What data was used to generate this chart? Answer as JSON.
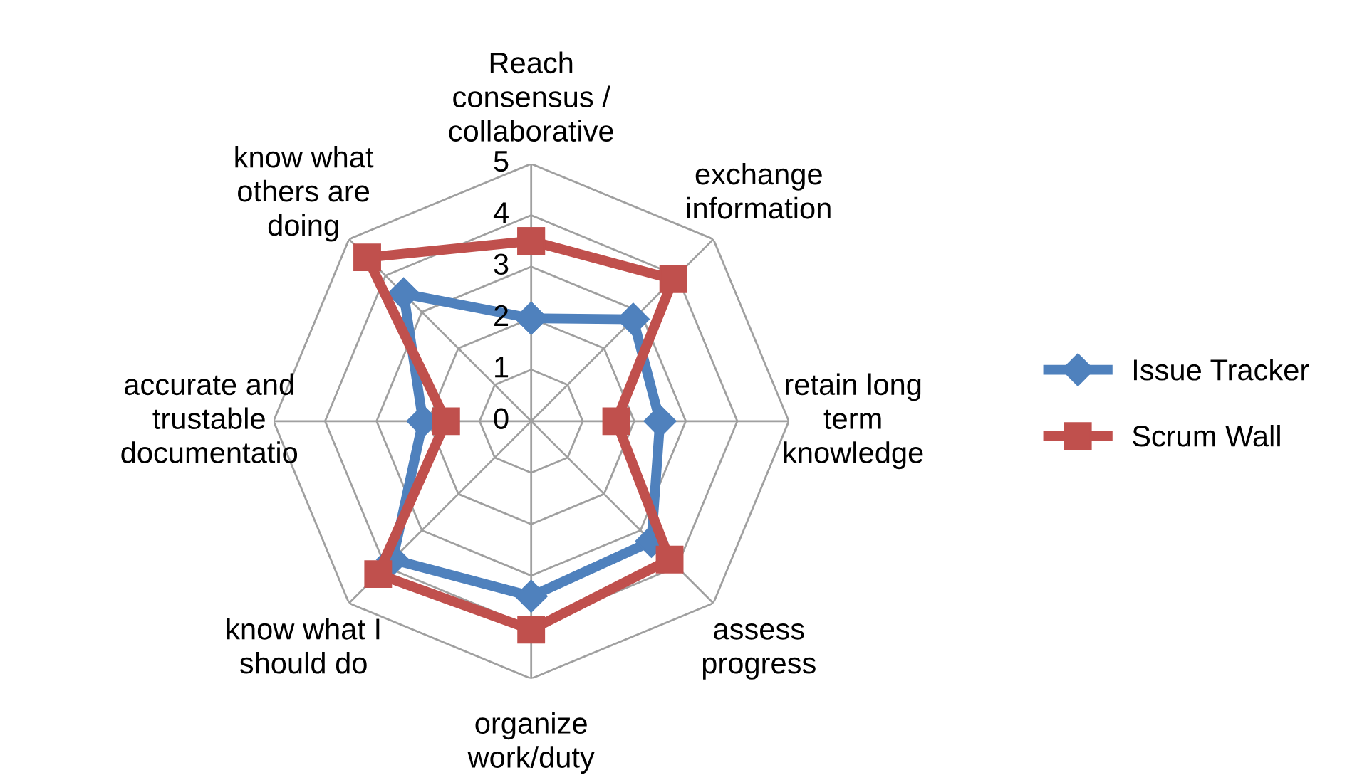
{
  "chart_data": {
    "type": "radar",
    "categories": [
      "Reach\nconsensus /\ncollaborative",
      "exchange\ninformation",
      "retain long\nterm\nknowledge",
      "assess\nprogress",
      "organize\nwork/duty",
      "know what I\nshould do",
      "accurate and\ntrustable\ndocumentatio",
      "know what\nothers are\ndoing"
    ],
    "series": [
      {
        "name": "Issue Tracker",
        "color": "#4f81bd",
        "marker": "diamond",
        "values": [
          2,
          2.8,
          2.5,
          3.3,
          3.4,
          3.8,
          2.1,
          3.5
        ]
      },
      {
        "name": "Scrum Wall",
        "color": "#c0504d",
        "marker": "square",
        "values": [
          3.5,
          3.9,
          1.65,
          3.8,
          4.05,
          4.2,
          1.65,
          4.5
        ]
      }
    ],
    "ylim": [
      0,
      5
    ],
    "yticks": [
      0,
      1,
      2,
      3,
      4,
      5
    ],
    "grid": true,
    "legend": "right"
  }
}
